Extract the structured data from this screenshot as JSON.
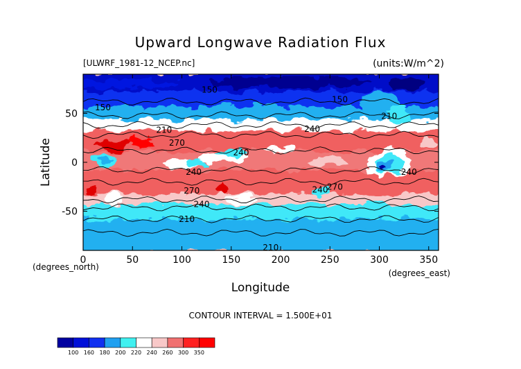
{
  "chart_data": {
    "type": "heatmap",
    "title": "Upward Longwave Radiation Flux",
    "file_label": "[ULWRF_1981-12_NCEP.nc]",
    "units_label": "(units:W/m^2)",
    "xlabel": "Longitude",
    "ylabel": "Latitude",
    "x_unit_note": "(degrees_east)",
    "y_unit_note": "(degrees_north)",
    "xlim": [
      0,
      360
    ],
    "ylim": [
      -90,
      90
    ],
    "x_ticks": [
      0,
      50,
      100,
      150,
      200,
      250,
      300,
      350
    ],
    "y_ticks": [
      50,
      0,
      -50
    ],
    "contour_interval_text": "CONTOUR INTERVAL = 1.500E+01",
    "contour_labels": [
      {
        "text": "150",
        "lon": 128,
        "lat": 74
      },
      {
        "text": "150",
        "lon": 20,
        "lat": 56
      },
      {
        "text": "150",
        "lon": 260,
        "lat": 64
      },
      {
        "text": "210",
        "lon": 310,
        "lat": 47
      },
      {
        "text": "210",
        "lon": 82,
        "lat": 33
      },
      {
        "text": "240",
        "lon": 232,
        "lat": 34
      },
      {
        "text": "270",
        "lon": 95,
        "lat": 20
      },
      {
        "text": "240",
        "lon": 160,
        "lat": 10
      },
      {
        "text": "240",
        "lon": 112,
        "lat": -10
      },
      {
        "text": "270",
        "lon": 110,
        "lat": -29
      },
      {
        "text": "240",
        "lon": 240,
        "lat": -28
      },
      {
        "text": "270",
        "lon": 255,
        "lat": -25
      },
      {
        "text": "240",
        "lon": 120,
        "lat": -43
      },
      {
        "text": "210",
        "lon": 105,
        "lat": -58
      },
      {
        "text": "240",
        "lon": 330,
        "lat": -10
      },
      {
        "text": "210",
        "lon": 190,
        "lat": -87
      }
    ],
    "colorbar": {
      "levels": [
        100,
        160,
        180,
        200,
        220,
        240,
        260,
        300,
        350
      ],
      "colors": [
        "#0000a0",
        "#0010d8",
        "#1030f0",
        "#20a0f0",
        "#40f0f0",
        "#ffffff",
        "#f8c8c8",
        "#f07070",
        "#ff2020",
        "#ff0000"
      ]
    },
    "zonal_bands": [
      {
        "lat_min": 70,
        "lat_max": 90,
        "level": "lt160"
      },
      {
        "lat_min": 55,
        "lat_max": 70,
        "level": "160-180"
      },
      {
        "lat_min": 42,
        "lat_max": 55,
        "level": "180-220"
      },
      {
        "lat_min": 30,
        "lat_max": 42,
        "level": "220-240"
      },
      {
        "lat_min": 10,
        "lat_max": 30,
        "level": "260-300"
      },
      {
        "lat_min": -10,
        "lat_max": 10,
        "level": "240-300"
      },
      {
        "lat_min": -35,
        "lat_max": -10,
        "level": "260-300"
      },
      {
        "lat_min": -45,
        "lat_max": -35,
        "level": "240-260"
      },
      {
        "lat_min": -60,
        "lat_max": -45,
        "level": "200-220"
      },
      {
        "lat_min": -90,
        "lat_max": -60,
        "level": "180-220"
      }
    ]
  }
}
